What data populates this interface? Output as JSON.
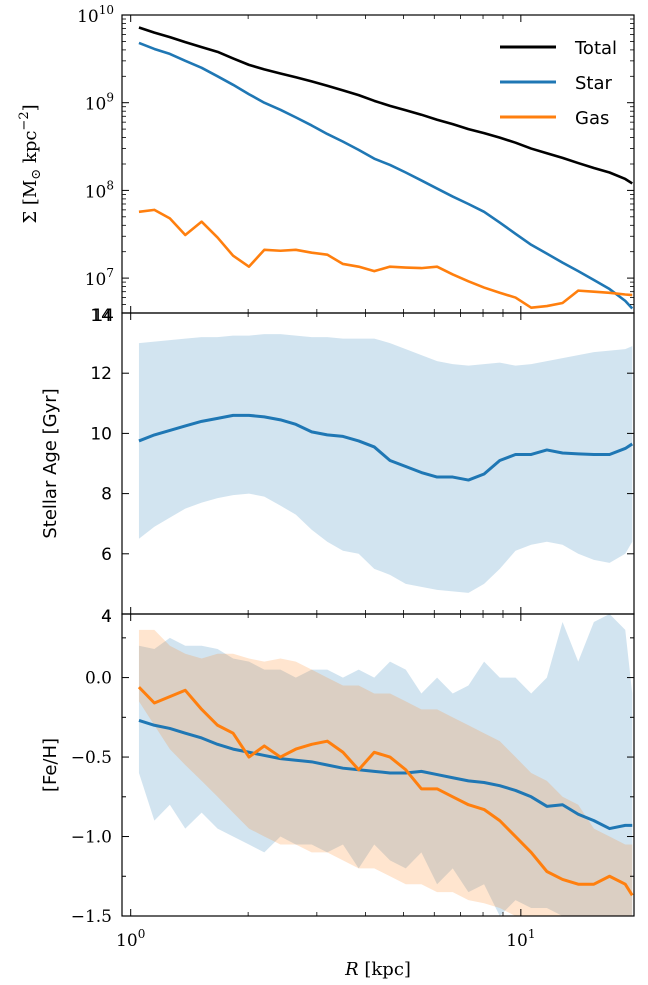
{
  "chart_data": [
    {
      "type": "line",
      "panel": "surface-density",
      "ylabel_parts": [
        "Σ [M",
        "⊙",
        " kpc",
        "−2",
        "]"
      ],
      "yscale": "log",
      "ylim": [
        4000000,
        10000000000
      ],
      "xlim": [
        0.95,
        19.5
      ],
      "xscale": "log",
      "ytick_labels": [
        {
          "base": "10",
          "exp": "10",
          "value": 10000000000
        },
        {
          "base": "10",
          "exp": "9",
          "value": 1000000000
        },
        {
          "base": "10",
          "exp": "8",
          "value": 100000000
        },
        {
          "base": "10",
          "exp": "7",
          "value": 10000000
        }
      ],
      "bottom_label": "14",
      "legend": {
        "position": "top-right",
        "entries": [
          "Total",
          "Star",
          "Gas"
        ]
      },
      "series": [
        {
          "name": "Total",
          "color": "#000000",
          "x": [
            1.05,
            1.15,
            1.26,
            1.38,
            1.52,
            1.67,
            1.83,
            2.01,
            2.2,
            2.42,
            2.65,
            2.91,
            3.19,
            3.5,
            3.84,
            4.21,
            4.62,
            5.07,
            5.56,
            6.1,
            6.69,
            7.34,
            8.05,
            8.83,
            9.69,
            10.63,
            11.66,
            12.79,
            14.03,
            15.39,
            16.88,
            18.52,
            19.3
          ],
          "y": [
            7200000000,
            6300000000,
            5600000000,
            4900000000,
            4300000000,
            3800000000,
            3200000000,
            2700000000,
            2400000000,
            2150000000,
            1950000000,
            1750000000,
            1560000000,
            1380000000,
            1220000000,
            1050000000,
            920000000,
            820000000,
            730000000,
            640000000,
            570000000,
            500000000,
            450000000,
            400000000,
            350000000,
            300000000,
            265000000,
            235000000,
            205000000,
            180000000,
            160000000,
            135000000,
            120000000
          ]
        },
        {
          "name": "Star",
          "color": "#1f77b4",
          "x": [
            1.05,
            1.15,
            1.26,
            1.38,
            1.52,
            1.67,
            1.83,
            2.01,
            2.2,
            2.42,
            2.65,
            2.91,
            3.19,
            3.5,
            3.84,
            4.21,
            4.62,
            5.07,
            5.56,
            6.1,
            6.69,
            7.34,
            8.05,
            8.83,
            9.69,
            10.63,
            11.66,
            12.79,
            14.03,
            15.39,
            16.88,
            18.52,
            19.3
          ],
          "y": [
            4800000000,
            4100000000,
            3600000000,
            3000000000,
            2500000000,
            2000000000,
            1600000000,
            1250000000,
            1000000000,
            830000000,
            680000000,
            550000000,
            440000000,
            360000000,
            290000000,
            230000000,
            195000000,
            160000000,
            130000000,
            105000000,
            85000000,
            70000000,
            57000000,
            43000000,
            32000000,
            24000000,
            19000000,
            15000000,
            12000000,
            9500000,
            7500000,
            5500000,
            4500000
          ]
        },
        {
          "name": "Gas",
          "color": "#ff7f0e",
          "x": [
            1.05,
            1.15,
            1.26,
            1.38,
            1.52,
            1.67,
            1.83,
            2.01,
            2.2,
            2.42,
            2.65,
            2.91,
            3.19,
            3.5,
            3.84,
            4.21,
            4.62,
            5.07,
            5.56,
            6.1,
            6.69,
            7.34,
            8.05,
            8.83,
            9.69,
            10.63,
            11.66,
            12.79,
            14.03,
            15.39,
            16.88,
            18.52,
            19.3
          ],
          "y": [
            57000000,
            60000000,
            48000000,
            31000000,
            44000000,
            29000000,
            18000000,
            13500000,
            21000000,
            20500000,
            21000000,
            19500000,
            18500000,
            14500000,
            13500000,
            12000000,
            13500000,
            13200000,
            13000000,
            13500000,
            11000000,
            9200000,
            7800000,
            6800000,
            6000000,
            4600000,
            4800000,
            5200000,
            7200000,
            7000000,
            6800000,
            6500000,
            6400000
          ]
        }
      ]
    },
    {
      "type": "line",
      "panel": "stellar-age",
      "ylabel": "Stellar Age [Gyr]",
      "ylim": [
        4,
        14
      ],
      "xlim": [
        0.95,
        19.5
      ],
      "xscale": "log",
      "ytick_labels": [
        "6",
        "8",
        "10",
        "12"
      ],
      "top_label": "14",
      "bottom_label": "4",
      "series": [
        {
          "name": "",
          "color": "#1f77b4",
          "x": [
            1.05,
            1.15,
            1.26,
            1.38,
            1.52,
            1.67,
            1.83,
            2.01,
            2.2,
            2.42,
            2.65,
            2.91,
            3.19,
            3.5,
            3.84,
            4.21,
            4.62,
            5.07,
            5.56,
            6.1,
            6.69,
            7.34,
            8.05,
            8.83,
            9.69,
            10.63,
            11.66,
            12.79,
            14.03,
            15.39,
            16.88,
            18.52,
            19.3
          ],
          "y": [
            9.75,
            9.95,
            10.1,
            10.25,
            10.4,
            10.5,
            10.6,
            10.6,
            10.55,
            10.45,
            10.3,
            10.05,
            9.95,
            9.9,
            9.75,
            9.55,
            9.1,
            8.9,
            8.7,
            8.55,
            8.55,
            8.45,
            8.65,
            9.1,
            9.3,
            9.3,
            9.45,
            9.35,
            9.32,
            9.3,
            9.3,
            9.5,
            9.65
          ],
          "band_upper": [
            13.0,
            13.05,
            13.1,
            13.15,
            13.2,
            13.2,
            13.25,
            13.25,
            13.3,
            13.3,
            13.25,
            13.2,
            13.2,
            13.15,
            13.15,
            13.15,
            13.0,
            12.8,
            12.6,
            12.4,
            12.3,
            12.25,
            12.3,
            12.35,
            12.25,
            12.3,
            12.4,
            12.5,
            12.6,
            12.7,
            12.75,
            12.8,
            12.9
          ],
          "band_lower": [
            6.5,
            6.9,
            7.2,
            7.5,
            7.7,
            7.85,
            7.95,
            8.0,
            7.9,
            7.6,
            7.3,
            6.8,
            6.4,
            6.1,
            6.0,
            5.5,
            5.3,
            5.0,
            4.9,
            4.8,
            4.75,
            4.7,
            5.0,
            5.5,
            6.1,
            6.3,
            6.4,
            6.3,
            6.0,
            5.8,
            5.7,
            6.0,
            6.4
          ]
        }
      ]
    },
    {
      "type": "line",
      "panel": "metallicity",
      "ylabel": "[Fe/H]",
      "xlabel": "R [kpc]",
      "ylim": [
        -1.5,
        0.4
      ],
      "xlim": [
        0.95,
        19.5
      ],
      "xscale": "log",
      "ytick_labels": [
        {
          "label": "0.0",
          "value": 0.0
        },
        {
          "label": "−0.5",
          "value": -0.5
        },
        {
          "label": "−1.0",
          "value": -1.0
        },
        {
          "label": "−1.5",
          "value": -1.5
        }
      ],
      "top_label": "4",
      "xtick_labels": [
        {
          "base": "10",
          "exp": "0",
          "value": 1
        },
        {
          "base": "10",
          "exp": "1",
          "value": 10
        }
      ],
      "series": [
        {
          "name": "Star",
          "color": "#1f77b4",
          "x": [
            1.05,
            1.15,
            1.26,
            1.38,
            1.52,
            1.67,
            1.83,
            2.01,
            2.2,
            2.42,
            2.65,
            2.91,
            3.19,
            3.5,
            3.84,
            4.21,
            4.62,
            5.07,
            5.56,
            6.1,
            6.69,
            7.34,
            8.05,
            8.83,
            9.69,
            10.63,
            11.66,
            12.79,
            14.03,
            15.39,
            16.88,
            18.52,
            19.3
          ],
          "y": [
            -0.27,
            -0.3,
            -0.32,
            -0.35,
            -0.38,
            -0.42,
            -0.45,
            -0.47,
            -0.49,
            -0.51,
            -0.52,
            -0.53,
            -0.55,
            -0.57,
            -0.58,
            -0.59,
            -0.6,
            -0.6,
            -0.59,
            -0.61,
            -0.63,
            -0.65,
            -0.66,
            -0.68,
            -0.71,
            -0.75,
            -0.81,
            -0.8,
            -0.86,
            -0.9,
            -0.95,
            -0.93,
            -0.93
          ],
          "band_upper": [
            0.2,
            0.18,
            0.25,
            0.2,
            0.2,
            0.18,
            0.12,
            0.1,
            0.05,
            0.05,
            0.0,
            0.05,
            0.05,
            0.0,
            0.05,
            0.0,
            0.1,
            0.05,
            -0.1,
            0.0,
            -0.1,
            -0.05,
            0.1,
            0.0,
            0.0,
            -0.1,
            0.0,
            0.35,
            0.1,
            0.35,
            0.4,
            0.3,
            -0.1
          ],
          "band_lower": [
            -0.6,
            -0.9,
            -0.8,
            -0.95,
            -0.85,
            -0.95,
            -1.0,
            -1.05,
            -1.1,
            -1.0,
            -1.05,
            -1.05,
            -1.1,
            -1.05,
            -1.2,
            -1.05,
            -1.15,
            -1.2,
            -1.1,
            -1.3,
            -1.2,
            -1.35,
            -1.3,
            -1.5,
            -1.4,
            -1.45,
            -1.45,
            -1.5,
            -1.5,
            -1.5,
            -1.5,
            -1.5,
            -1.5
          ]
        },
        {
          "name": "Gas",
          "color": "#ff7f0e",
          "x": [
            1.05,
            1.15,
            1.26,
            1.38,
            1.52,
            1.67,
            1.83,
            2.01,
            2.2,
            2.42,
            2.65,
            2.91,
            3.19,
            3.5,
            3.84,
            4.21,
            4.62,
            5.07,
            5.56,
            6.1,
            6.69,
            7.34,
            8.05,
            8.83,
            9.69,
            10.63,
            11.66,
            12.79,
            14.03,
            15.39,
            16.88,
            18.52,
            19.3
          ],
          "y": [
            -0.06,
            -0.16,
            -0.12,
            -0.08,
            -0.2,
            -0.3,
            -0.35,
            -0.5,
            -0.43,
            -0.5,
            -0.45,
            -0.42,
            -0.4,
            -0.47,
            -0.58,
            -0.47,
            -0.5,
            -0.58,
            -0.7,
            -0.7,
            -0.75,
            -0.8,
            -0.83,
            -0.9,
            -1.0,
            -1.1,
            -1.22,
            -1.27,
            -1.3,
            -1.3,
            -1.25,
            -1.3,
            -1.37
          ],
          "band_upper": [
            0.3,
            0.3,
            0.2,
            0.15,
            0.12,
            0.15,
            0.15,
            0.12,
            0.1,
            0.12,
            0.1,
            0.05,
            0.0,
            -0.05,
            -0.05,
            -0.1,
            -0.1,
            -0.15,
            -0.2,
            -0.2,
            -0.25,
            -0.3,
            -0.35,
            -0.4,
            -0.5,
            -0.6,
            -0.65,
            -0.75,
            -0.8,
            -0.95,
            -1.0,
            -1.05,
            -1.05
          ],
          "band_lower": [
            -0.15,
            -0.3,
            -0.45,
            -0.55,
            -0.65,
            -0.75,
            -0.85,
            -0.95,
            -1.0,
            -1.05,
            -1.05,
            -1.1,
            -1.1,
            -1.15,
            -1.2,
            -1.2,
            -1.25,
            -1.3,
            -1.3,
            -1.35,
            -1.35,
            -1.4,
            -1.42,
            -1.45,
            -1.5,
            -1.5,
            -1.5,
            -1.5,
            -1.5,
            -1.5,
            -1.5,
            -1.5,
            -1.5
          ]
        }
      ]
    }
  ]
}
